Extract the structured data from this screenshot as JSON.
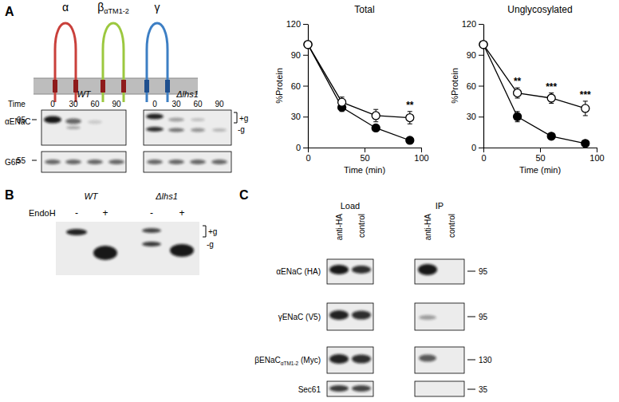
{
  "chart_data": [
    {
      "type": "line",
      "title": "Total",
      "xlabel": "Time (min)",
      "ylabel": "%Protein",
      "x": [
        0,
        30,
        60,
        90
      ],
      "xlim": [
        0,
        100
      ],
      "xticks": [
        0,
        50,
        100
      ],
      "ylim": [
        0,
        120
      ],
      "yticks": [
        0,
        30,
        60,
        90,
        120
      ],
      "series": [
        {
          "color": "#000000",
          "marker": "circle",
          "values": [
            100,
            39,
            19,
            7
          ],
          "errors": [
            0,
            4,
            3,
            2
          ]
        },
        {
          "color": "#000000",
          "marker": "circle-open",
          "values": [
            100,
            44,
            31,
            29
          ],
          "errors": [
            0,
            5,
            6,
            6
          ]
        }
      ],
      "annotations": [
        {
          "text": "**",
          "x": 90
        }
      ]
    },
    {
      "type": "line",
      "title": "Unglycosylated",
      "xlabel": "Time (min)",
      "ylabel": "%Protein",
      "x": [
        0,
        30,
        60,
        90
      ],
      "xlim": [
        0,
        100
      ],
      "xticks": [
        0,
        50,
        100
      ],
      "ylim": [
        0,
        120
      ],
      "yticks": [
        0,
        30,
        60,
        90,
        120
      ],
      "series": [
        {
          "color": "#000000",
          "marker": "circle",
          "values": [
            100,
            30,
            11,
            4
          ],
          "errors": [
            0,
            5,
            2,
            1
          ]
        },
        {
          "color": "#000000",
          "marker": "circle-open",
          "values": [
            100,
            53,
            48,
            38
          ],
          "errors": [
            0,
            5,
            5,
            7
          ]
        }
      ],
      "annotations": [
        {
          "text": "**",
          "x": 30
        },
        {
          "text": "***",
          "x": 60
        },
        {
          "text": "***",
          "x": 90
        }
      ]
    }
  ],
  "figure": {
    "panel_labels": [
      "A",
      "B",
      "C"
    ],
    "topology": {
      "subunits": [
        {
          "main": "α"
        },
        {
          "main": "β",
          "sub": "αTM1-2"
        },
        {
          "main": "γ"
        }
      ]
    },
    "blot_a": {
      "time_label": "Time",
      "times": [
        0,
        30,
        60,
        90
      ],
      "strains": [
        "WT",
        "Δlhs1"
      ],
      "rows": [
        {
          "label": "αENaC",
          "mw": 95
        },
        {
          "label": "G6P",
          "mw": 55
        }
      ],
      "glyco": [
        "+g",
        "-g"
      ]
    },
    "blot_b": {
      "strains": [
        "WT",
        "Δlhs1"
      ],
      "treatment": "EndoH",
      "lanes": [
        "-",
        "+",
        "-",
        "+"
      ],
      "glyco": [
        "+g",
        "-g"
      ]
    },
    "blot_c": {
      "groups": [
        "Load",
        "IP"
      ],
      "lanes": [
        "anti-HA",
        "control"
      ],
      "rows": [
        {
          "main": "αENaC (HA)",
          "mw": 95
        },
        {
          "main": "γENaC (V5)",
          "mw": 95
        },
        {
          "main": "βENaC",
          "sub": "αTM1-2",
          "suffix": " (Myc)",
          "mw": 130
        },
        {
          "main": "Sec61",
          "mw": 35
        }
      ]
    }
  }
}
